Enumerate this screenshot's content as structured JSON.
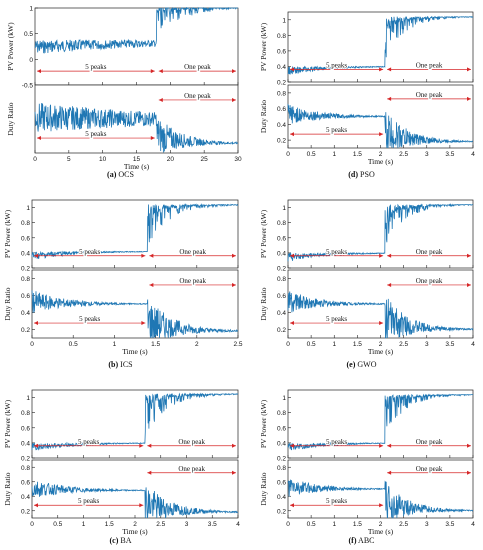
{
  "series_color": "#1f77b4",
  "annotation_color": "#d62728",
  "axis_labels": {
    "power": "PV Power (kW)",
    "duty": "Duty Ratio",
    "time": "Time (s)"
  },
  "annotations": {
    "before": "5 peaks",
    "after": "One peak"
  },
  "panels": [
    {
      "id": "a",
      "letter": "(a)",
      "name": "OCS",
      "change_time": 18,
      "xlim": [
        0,
        30
      ],
      "xticks": [
        "0",
        "5",
        "10",
        "15",
        "20",
        "25",
        "30"
      ],
      "power_ylim": [
        -0.5,
        1.0
      ],
      "power_yticks": [
        "-0.5",
        "0",
        "0.5",
        "1"
      ],
      "duty_ylim": [
        0,
        1
      ],
      "duty_yticks": [],
      "power_before": 0.38,
      "power_after": 1.03,
      "duty_before": 0.48,
      "duty_after": 0.14
    },
    {
      "id": "b",
      "letter": "(b)",
      "name": "ICS",
      "change_time": 1.4,
      "xlim": [
        0,
        2.5
      ],
      "xticks": [
        "0",
        "0.5",
        "1",
        "1.5",
        "2",
        "2.5"
      ],
      "power_ylim": [
        0.2,
        1.1
      ],
      "power_yticks": [
        "0.2",
        "0.4",
        "0.6",
        "0.8",
        "1"
      ],
      "duty_ylim": [
        0.1,
        0.9
      ],
      "duty_yticks": [
        "0.2",
        "0.4",
        "0.6",
        "0.8"
      ],
      "power_before": 0.42,
      "power_after": 1.04,
      "duty_before": 0.5,
      "duty_after": 0.18
    },
    {
      "id": "c",
      "letter": "(c)",
      "name": "BA",
      "change_time": 2.2,
      "xlim": [
        0,
        4
      ],
      "xticks": [
        "0",
        "0.5",
        "1",
        "1.5",
        "2",
        "2.5",
        "3",
        "3.5",
        "4"
      ],
      "power_ylim": [
        0.2,
        1.1
      ],
      "power_yticks": [
        "0.2",
        "0.4",
        "0.6",
        "0.8",
        "1"
      ],
      "duty_ylim": [
        0.1,
        0.9
      ],
      "duty_yticks": [
        "0.2",
        "0.4",
        "0.6",
        "0.8"
      ],
      "power_before": 0.4,
      "power_after": 1.05,
      "duty_before": 0.48,
      "duty_after": 0.18
    },
    {
      "id": "d",
      "letter": "(d)",
      "name": "PSO",
      "change_time": 2.1,
      "xlim": [
        0,
        4
      ],
      "xticks": [
        "0",
        "0.5",
        "1",
        "1.5",
        "2",
        "2.5",
        "3",
        "3.5",
        "4"
      ],
      "power_ylim": [
        0.2,
        1.1
      ],
      "power_yticks": [
        "0.2",
        "0.4",
        "0.6",
        "0.8",
        "1"
      ],
      "duty_ylim": [
        0.1,
        0.9
      ],
      "duty_yticks": [
        "0.2",
        "0.4",
        "0.6",
        "0.8"
      ],
      "power_before": 0.4,
      "power_after": 1.04,
      "duty_before": 0.5,
      "duty_after": 0.18
    },
    {
      "id": "e",
      "letter": "(e)",
      "name": "GWO",
      "change_time": 2.1,
      "xlim": [
        0,
        4
      ],
      "xticks": [
        "0",
        "0.5",
        "1",
        "1.5",
        "2",
        "2.5",
        "3",
        "3.5",
        "4"
      ],
      "power_ylim": [
        0.2,
        1.1
      ],
      "power_yticks": [
        "0.2",
        "0.4",
        "0.6",
        "0.8",
        "1"
      ],
      "duty_ylim": [
        0.1,
        0.9
      ],
      "duty_yticks": [
        "0.2",
        "0.4",
        "0.6",
        "0.8"
      ],
      "power_before": 0.4,
      "power_after": 1.04,
      "duty_before": 0.5,
      "duty_after": 0.2
    },
    {
      "id": "f",
      "letter": "(f)",
      "name": "ABC",
      "change_time": 2.1,
      "xlim": [
        0,
        4
      ],
      "xticks": [
        "0",
        "0.5",
        "1",
        "1.5",
        "2",
        "2.5",
        "3",
        "3.5",
        "4"
      ],
      "power_ylim": [
        0.2,
        1.1
      ],
      "power_yticks": [
        "0.2",
        "0.4",
        "0.6",
        "0.8",
        "1"
      ],
      "duty_ylim": [
        0.1,
        0.9
      ],
      "duty_yticks": [
        "0.2",
        "0.4",
        "0.6",
        "0.8"
      ],
      "power_before": 0.4,
      "power_after": 1.04,
      "duty_before": 0.5,
      "duty_after": 0.2
    }
  ],
  "chart_data": [
    {
      "type": "line",
      "panel": "(a) OCS",
      "xlabel": "Time (s)",
      "ylabel": [
        "PV Power (kW)",
        "Duty Ratio"
      ],
      "xlim": [
        0,
        30
      ],
      "series": [
        {
          "name": "PV Power (kW)",
          "x": [
            0,
            5,
            10,
            15,
            17.9,
            18.1,
            20,
            25,
            30
          ],
          "values": [
            0.3,
            0.38,
            0.38,
            0.38,
            0.38,
            0.95,
            1.03,
            1.03,
            1.03
          ]
        },
        {
          "name": "Duty Ratio",
          "x": [
            0,
            5,
            10,
            15,
            17.9,
            18.1,
            20,
            25,
            30
          ],
          "values": [
            0.55,
            0.5,
            0.48,
            0.48,
            0.48,
            0.85,
            0.2,
            0.14,
            0.14
          ]
        }
      ],
      "annotations": [
        "5 peaks",
        "One peak"
      ]
    },
    {
      "type": "line",
      "panel": "(b) ICS",
      "xlabel": "Time (s)",
      "ylabel": [
        "PV Power (kW)",
        "Duty Ratio"
      ],
      "xlim": [
        0,
        2.5
      ],
      "series": [
        {
          "name": "PV Power (kW)",
          "x": [
            0,
            0.5,
            1,
            1.39,
            1.41,
            1.6,
            2,
            2.5
          ],
          "values": [
            0.3,
            0.42,
            0.42,
            0.42,
            0.95,
            1.02,
            1.04,
            1.04
          ]
        },
        {
          "name": "Duty Ratio",
          "x": [
            0,
            0.5,
            1,
            1.39,
            1.41,
            1.6,
            2,
            2.5
          ],
          "values": [
            0.6,
            0.5,
            0.5,
            0.5,
            0.82,
            0.22,
            0.18,
            0.18
          ]
        }
      ],
      "annotations": [
        "5 peaks",
        "One peak"
      ]
    },
    {
      "type": "line",
      "panel": "(c) BA",
      "xlabel": "Time (s)",
      "ylabel": [
        "PV Power (kW)",
        "Duty Ratio"
      ],
      "xlim": [
        0,
        4
      ],
      "series": [
        {
          "name": "PV Power (kW)",
          "x": [
            0,
            1,
            2,
            2.19,
            2.21,
            2.6,
            3,
            4
          ],
          "values": [
            0.3,
            0.4,
            0.4,
            0.4,
            1.0,
            1.05,
            1.05,
            1.05
          ]
        },
        {
          "name": "Duty Ratio",
          "x": [
            0,
            1,
            2,
            2.19,
            2.21,
            2.6,
            3,
            4
          ],
          "values": [
            0.5,
            0.48,
            0.48,
            0.48,
            0.8,
            0.2,
            0.18,
            0.18
          ]
        }
      ],
      "annotations": [
        "5 peaks",
        "One peak"
      ]
    },
    {
      "type": "line",
      "panel": "(d) PSO",
      "xlabel": "Time (s)",
      "ylabel": [
        "PV Power (kW)",
        "Duty Ratio"
      ],
      "xlim": [
        0,
        4
      ],
      "series": [
        {
          "name": "PV Power (kW)",
          "x": [
            0,
            1,
            2,
            2.09,
            2.11,
            2.5,
            3,
            4
          ],
          "values": [
            0.3,
            0.4,
            0.4,
            0.4,
            1.0,
            1.04,
            1.04,
            1.04
          ]
        },
        {
          "name": "Duty Ratio",
          "x": [
            0,
            1,
            2,
            2.09,
            2.11,
            2.5,
            3,
            4
          ],
          "values": [
            0.6,
            0.5,
            0.5,
            0.5,
            0.85,
            0.2,
            0.18,
            0.18
          ]
        }
      ],
      "annotations": [
        "5 peaks",
        "One peak"
      ]
    },
    {
      "type": "line",
      "panel": "(e) GWO",
      "xlabel": "Time (s)",
      "ylabel": [
        "PV Power (kW)",
        "Duty Ratio"
      ],
      "xlim": [
        0,
        4
      ],
      "series": [
        {
          "name": "PV Power (kW)",
          "x": [
            0,
            1,
            2,
            2.09,
            2.11,
            2.5,
            3,
            4
          ],
          "values": [
            0.3,
            0.4,
            0.4,
            0.4,
            1.0,
            1.04,
            1.04,
            1.04
          ]
        },
        {
          "name": "Duty Ratio",
          "x": [
            0,
            1,
            2,
            2.09,
            2.11,
            2.5,
            3,
            4
          ],
          "values": [
            0.6,
            0.5,
            0.5,
            0.5,
            0.82,
            0.22,
            0.2,
            0.2
          ]
        }
      ],
      "annotations": [
        "5 peaks",
        "One peak"
      ]
    },
    {
      "type": "line",
      "panel": "(f) ABC",
      "xlabel": "Time (s)",
      "ylabel": [
        "PV Power (kW)",
        "Duty Ratio"
      ],
      "xlim": [
        0,
        4
      ],
      "series": [
        {
          "name": "PV Power (kW)",
          "x": [
            0,
            1,
            2,
            2.09,
            2.11,
            2.5,
            3,
            4
          ],
          "values": [
            0.3,
            0.4,
            0.4,
            0.4,
            1.0,
            1.04,
            1.04,
            1.04
          ]
        },
        {
          "name": "Duty Ratio",
          "x": [
            0,
            1,
            2,
            2.09,
            2.11,
            2.5,
            3,
            4
          ],
          "values": [
            0.55,
            0.5,
            0.5,
            0.5,
            0.82,
            0.22,
            0.2,
            0.2
          ]
        }
      ],
      "annotations": [
        "5 peaks",
        "One peak"
      ]
    }
  ]
}
